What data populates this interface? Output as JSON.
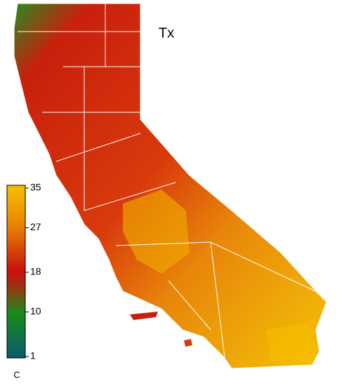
{
  "title": "Tx",
  "colorbar": {
    "label": "C",
    "lim": [
      1,
      35
    ],
    "ticks": [
      1,
      10,
      18,
      27,
      35
    ]
  }
}
